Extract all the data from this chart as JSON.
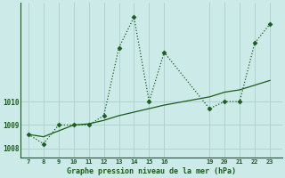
{
  "x": [
    7,
    8,
    9,
    10,
    11,
    12,
    13,
    14,
    15,
    16,
    19,
    20,
    21,
    22,
    23
  ],
  "y_jagged": [
    1008.6,
    1008.2,
    1009.0,
    1009.0,
    1009.0,
    1009.4,
    1012.3,
    1013.6,
    1010.0,
    1012.1,
    1009.7,
    1010.0,
    1010.0,
    1012.5,
    1013.3
  ],
  "y_trend": [
    1008.6,
    1008.5,
    1008.75,
    1009.0,
    1009.05,
    1009.2,
    1009.4,
    1009.55,
    1009.7,
    1009.85,
    1010.2,
    1010.4,
    1010.5,
    1010.7,
    1010.9
  ],
  "line_color": "#1a5c1a",
  "marker_color": "#1a5c1a",
  "bg_color": "#cceae8",
  "grid_color": "#aacfcd",
  "text_color": "#1a5c1a",
  "xlabel": "Graphe pression niveau de la mer (hPa)",
  "xticks": [
    7,
    8,
    9,
    10,
    11,
    12,
    13,
    14,
    15,
    16,
    19,
    20,
    21,
    22,
    23
  ],
  "yticks": [
    1008,
    1009,
    1010
  ],
  "ylim": [
    1007.6,
    1014.2
  ],
  "xlim": [
    6.5,
    23.8
  ]
}
